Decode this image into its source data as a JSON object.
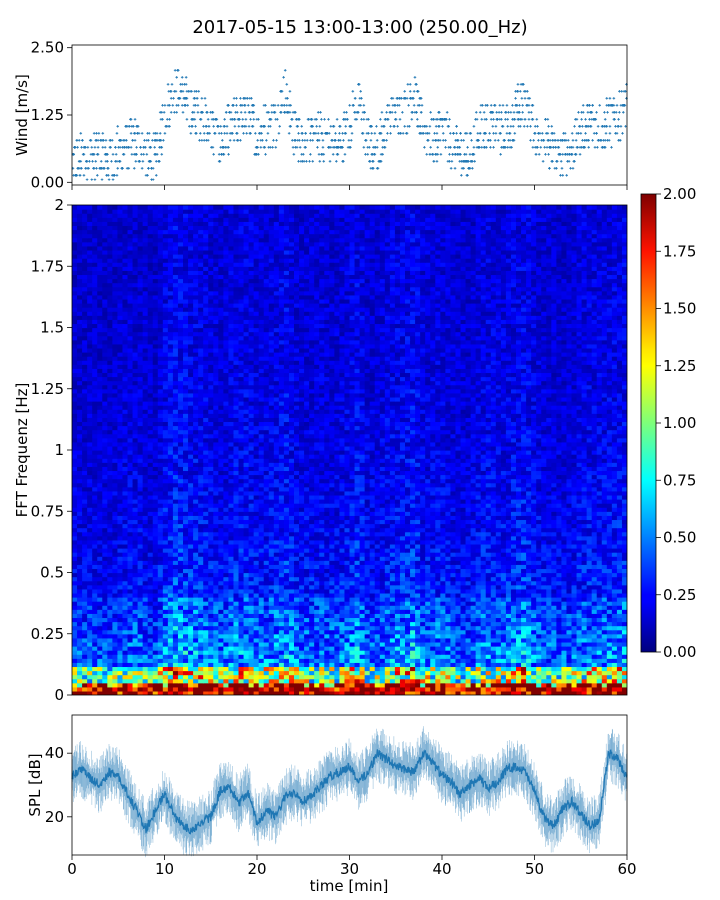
{
  "figure": {
    "title": "2017-05-15 13:00-13:00 (250.00_Hz)"
  },
  "chart_data": [
    {
      "type": "scatter",
      "panel": "wind",
      "ylabel": "Wind [m/s]",
      "xlabel": "",
      "xlim": [
        0,
        60
      ],
      "ylim": [
        -0.05,
        2.55
      ],
      "yticks": [
        0.0,
        1.25,
        2.5
      ],
      "ytick_labels": [
        "0.00",
        "1.25",
        "2.50"
      ],
      "xticks": [
        0,
        10,
        20,
        30,
        40,
        50,
        60
      ],
      "marker": "+",
      "color": "#1f77b4",
      "series": [
        {
          "x": [
            0,
            1,
            2,
            3,
            4,
            5,
            6,
            7,
            8,
            9,
            10,
            11,
            12,
            13,
            14,
            15,
            16,
            17,
            18,
            19,
            20,
            21,
            22,
            23,
            24,
            25,
            26,
            27,
            28,
            29,
            30,
            31,
            32,
            33,
            34,
            35,
            36,
            37,
            38,
            39,
            40,
            41,
            42,
            43,
            44,
            45,
            46,
            47,
            48,
            49,
            50,
            51,
            52,
            53,
            54,
            55,
            56,
            57,
            58,
            59,
            60
          ],
          "y": [
            0.4,
            0.45,
            0.5,
            0.45,
            0.4,
            0.55,
            0.7,
            0.75,
            0.5,
            0.4,
            1.25,
            1.7,
            1.6,
            1.3,
            1.25,
            1.0,
            0.7,
            1.0,
            1.2,
            1.25,
            0.9,
            1.0,
            1.1,
            1.7,
            0.9,
            0.8,
            0.8,
            0.85,
            0.7,
            0.75,
            1.1,
            1.5,
            0.7,
            0.6,
            1.1,
            1.2,
            1.3,
            1.7,
            0.9,
            0.8,
            1.0,
            0.7,
            0.6,
            0.5,
            1.0,
            1.1,
            1.0,
            1.0,
            1.3,
            1.5,
            0.9,
            0.8,
            0.6,
            0.5,
            0.6,
            1.0,
            1.1,
            1.0,
            1.1,
            1.2,
            1.4
          ]
        }
      ]
    },
    {
      "type": "heatmap",
      "panel": "spectrogram",
      "ylabel": "FFT Frequenz [Hz]",
      "xlabel": "",
      "xlim": [
        0,
        60
      ],
      "ylim": [
        0,
        2
      ],
      "yticks": [
        0,
        0.25,
        0.5,
        0.75,
        1,
        1.25,
        1.5,
        1.75,
        2
      ],
      "ytick_labels": [
        "0",
        "0.25",
        "0.5",
        "0.75",
        "1",
        "1.25",
        "1.5",
        "1.75",
        "2"
      ],
      "colormap": "jet",
      "colorbar": {
        "range": [
          0.0,
          2.0
        ],
        "ticks": [
          "0.00",
          "0.25",
          "0.50",
          "0.75",
          "1.00",
          "1.25",
          "1.50",
          "1.75",
          "2.00"
        ]
      },
      "description_of_values": {
        "background_level_high_freq": 0.15,
        "mid_band_0.1_to_0.4_Hz": 0.45,
        "low_band_below_0.05_Hz": 1.6
      }
    },
    {
      "type": "line",
      "panel": "spl",
      "ylabel": "SPL [dB]",
      "xlabel": "time [min]",
      "xlim": [
        0,
        60
      ],
      "ylim": [
        8,
        52
      ],
      "yticks": [
        20,
        40
      ],
      "xticks": [
        0,
        10,
        20,
        30,
        40,
        50,
        60
      ],
      "color": "#1f77b4",
      "series": [
        {
          "x": [
            0,
            1,
            2,
            3,
            4,
            5,
            6,
            7,
            8,
            9,
            10,
            11,
            12,
            13,
            14,
            15,
            16,
            17,
            18,
            19,
            20,
            21,
            22,
            23,
            24,
            25,
            26,
            27,
            28,
            29,
            30,
            31,
            32,
            33,
            34,
            35,
            36,
            37,
            38,
            39,
            40,
            41,
            42,
            43,
            44,
            45,
            46,
            47,
            48,
            49,
            50,
            51,
            52,
            53,
            54,
            55,
            56,
            57,
            58,
            59,
            60
          ],
          "y": [
            33,
            35,
            32,
            30,
            34,
            33,
            27,
            22,
            16,
            22,
            27,
            21,
            17,
            16,
            18,
            20,
            28,
            30,
            24,
            28,
            18,
            22,
            20,
            26,
            28,
            25,
            27,
            30,
            33,
            34,
            36,
            31,
            34,
            40,
            38,
            36,
            35,
            34,
            40,
            37,
            33,
            31,
            27,
            30,
            32,
            29,
            31,
            35,
            36,
            34,
            28,
            20,
            17,
            22,
            25,
            21,
            17,
            19,
            40,
            38,
            32
          ]
        }
      ]
    }
  ]
}
